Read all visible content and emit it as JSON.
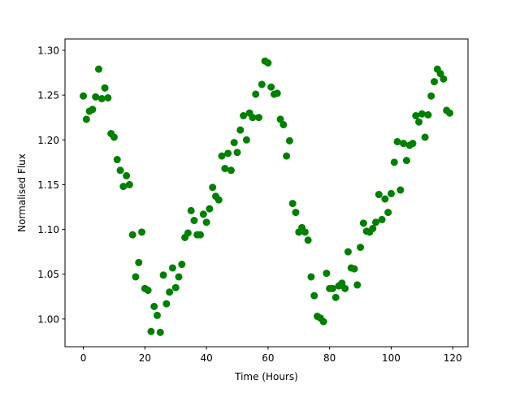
{
  "chart_data": {
    "type": "scatter",
    "title": "",
    "xlabel": "Time (Hours)",
    "ylabel": "Normalised Flux",
    "xlim": [
      -5.95,
      124.95
    ],
    "ylim": [
      0.969,
      1.3127
    ],
    "xticks": [
      0,
      20,
      40,
      60,
      80,
      100,
      120
    ],
    "xtick_labels": [
      "0",
      "20",
      "40",
      "60",
      "80",
      "100",
      "120"
    ],
    "yticks": [
      1.0,
      1.05,
      1.1,
      1.15,
      1.2,
      1.25,
      1.3
    ],
    "ytick_labels": [
      "1.00",
      "1.05",
      "1.10",
      "1.15",
      "1.20",
      "1.25",
      "1.30"
    ],
    "grid": false,
    "marker_color": "#008000",
    "series": [
      {
        "x": [
          0,
          1,
          2,
          3,
          4,
          5,
          6,
          7,
          8,
          9,
          10,
          11,
          12,
          13,
          14,
          15,
          16,
          17,
          18,
          19,
          20,
          21,
          22,
          23,
          24,
          25,
          26,
          27,
          28,
          29,
          30,
          31,
          32,
          33,
          34,
          35,
          36,
          37,
          38,
          39,
          40,
          41,
          42,
          43,
          44,
          45,
          46,
          47,
          48,
          49,
          50,
          51,
          52,
          53,
          54,
          55,
          56,
          57,
          58,
          59,
          60,
          61,
          62,
          63,
          64,
          65,
          66,
          67,
          68,
          69,
          70,
          71,
          72,
          73,
          74,
          75,
          76,
          77,
          78,
          79,
          80,
          81,
          82,
          83,
          84,
          85,
          86,
          87,
          88,
          89,
          90,
          91,
          92,
          93,
          94,
          95,
          96,
          97,
          98,
          99,
          100,
          101,
          102,
          103,
          104,
          105,
          106,
          107,
          108,
          109,
          110,
          111,
          112,
          113,
          114,
          115,
          116,
          117,
          118,
          119
        ],
        "y": [
          1.249,
          1.223,
          1.232,
          1.234,
          1.248,
          1.279,
          1.246,
          1.258,
          1.247,
          1.207,
          1.203,
          1.178,
          1.166,
          1.148,
          1.16,
          1.15,
          1.094,
          1.047,
          1.063,
          1.097,
          1.034,
          1.032,
          0.986,
          1.014,
          1.004,
          0.985,
          1.049,
          1.017,
          1.03,
          1.057,
          1.035,
          1.047,
          1.061,
          1.091,
          1.096,
          1.121,
          1.11,
          1.094,
          1.094,
          1.117,
          1.108,
          1.123,
          1.147,
          1.137,
          1.133,
          1.182,
          1.168,
          1.185,
          1.166,
          1.197,
          1.186,
          1.211,
          1.227,
          1.2,
          1.23,
          1.225,
          1.251,
          1.225,
          1.262,
          1.288,
          1.286,
          1.259,
          1.251,
          1.252,
          1.223,
          1.217,
          1.182,
          1.199,
          1.129,
          1.119,
          1.097,
          1.102,
          1.097,
          1.088,
          1.047,
          1.026,
          1.003,
          1.001,
          0.997,
          1.051,
          1.034,
          1.034,
          1.024,
          1.037,
          1.04,
          1.034,
          1.075,
          1.057,
          1.056,
          1.038,
          1.08,
          1.107,
          1.098,
          1.097,
          1.101,
          1.108,
          1.139,
          1.111,
          1.134,
          1.119,
          1.14,
          1.175,
          1.198,
          1.144,
          1.196,
          1.177,
          1.194,
          1.196,
          1.227,
          1.22,
          1.229,
          1.203,
          1.228,
          1.249,
          1.265,
          1.279,
          1.274,
          1.268,
          1.233,
          1.23
        ]
      }
    ]
  }
}
